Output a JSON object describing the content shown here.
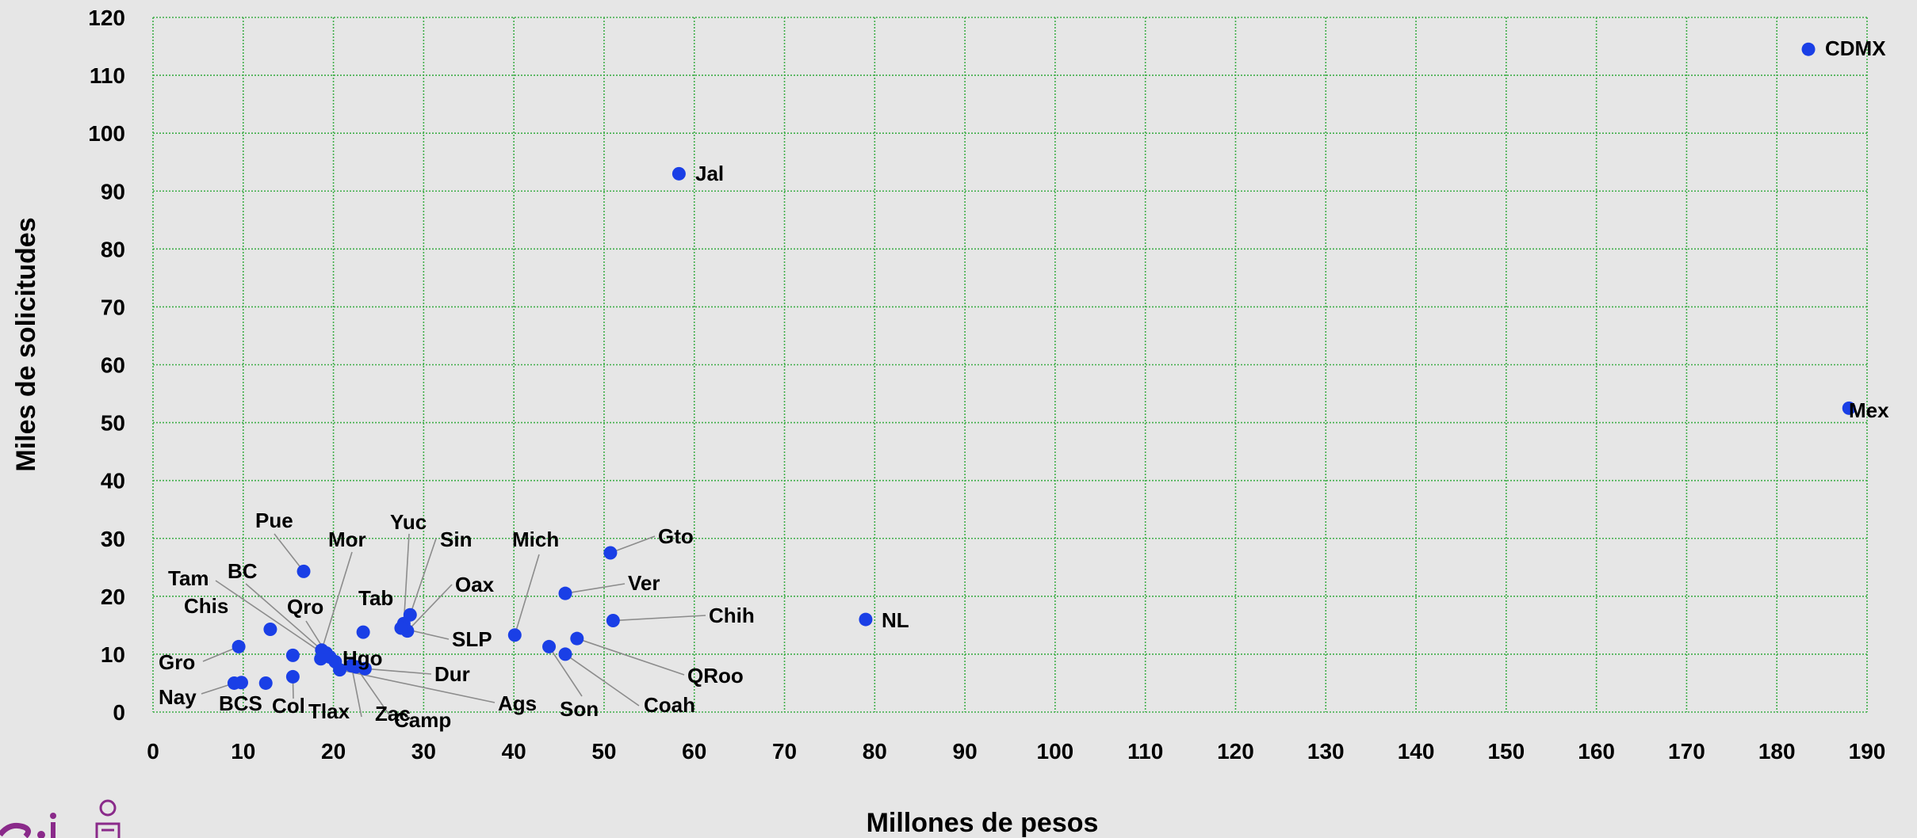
{
  "chart_data": {
    "type": "scatter",
    "xlabel": "Millones de pesos",
    "ylabel": "Miles de solicitudes",
    "xlim": [
      0,
      190
    ],
    "ylim": [
      0,
      120
    ],
    "xticks": [
      0,
      10,
      20,
      30,
      40,
      50,
      60,
      70,
      80,
      90,
      100,
      110,
      120,
      130,
      140,
      150,
      160,
      170,
      180,
      190
    ],
    "yticks": [
      0,
      10,
      20,
      30,
      40,
      50,
      60,
      70,
      80,
      90,
      100,
      110,
      120
    ],
    "grid": true,
    "marker_color": "#1a3fe6",
    "grid_color": "#3fae49",
    "points": [
      {
        "label": "CDMX",
        "x": 183.5,
        "y": 114.5
      },
      {
        "label": "Jal",
        "x": 58.3,
        "y": 93.0
      },
      {
        "label": "Mex",
        "x": 188.0,
        "y": 52.5
      },
      {
        "label": "NL",
        "x": 79.0,
        "y": 16.0
      },
      {
        "label": "Gto",
        "x": 50.7,
        "y": 27.5
      },
      {
        "label": "Ver",
        "x": 45.7,
        "y": 20.5
      },
      {
        "label": "Chih",
        "x": 51.0,
        "y": 15.8
      },
      {
        "label": "QRoo",
        "x": 47.0,
        "y": 12.7
      },
      {
        "label": "Coah",
        "x": 45.7,
        "y": 10.0
      },
      {
        "label": "Son",
        "x": 43.9,
        "y": 11.3
      },
      {
        "label": "Mich",
        "x": 40.1,
        "y": 13.3
      },
      {
        "label": "Yuc",
        "x": 27.8,
        "y": 15.3
      },
      {
        "label": "Sin",
        "x": 28.5,
        "y": 16.8
      },
      {
        "label": "Oax",
        "x": 28.2,
        "y": 14.0
      },
      {
        "label": "SLP",
        "x": 27.5,
        "y": 14.5
      },
      {
        "label": "Tab",
        "x": 23.3,
        "y": 13.8
      },
      {
        "label": "Pue",
        "x": 16.7,
        "y": 24.3
      },
      {
        "label": "Mor",
        "x": 18.7,
        "y": 10.7
      },
      {
        "label": "Qro",
        "x": 19.2,
        "y": 10.2
      },
      {
        "label": "BC",
        "x": 19.6,
        "y": 9.5
      },
      {
        "label": "Tam",
        "x": 20.2,
        "y": 8.7
      },
      {
        "label": "Hgo",
        "x": 18.6,
        "y": 9.2
      },
      {
        "label": "Dur",
        "x": 23.5,
        "y": 7.5
      },
      {
        "label": "Ags",
        "x": 20.7,
        "y": 7.3
      },
      {
        "label": "Camp",
        "x": 22.5,
        "y": 7.8
      },
      {
        "label": "Zac",
        "x": 22.0,
        "y": 8.0
      },
      {
        "label": "Tlax",
        "x": 15.5,
        "y": 9.8
      },
      {
        "label": "Chis",
        "x": 13.0,
        "y": 14.3
      },
      {
        "label": "Gro",
        "x": 9.5,
        "y": 11.3
      },
      {
        "label": "Col",
        "x": 15.5,
        "y": 6.1
      },
      {
        "label": "BCS",
        "x": 12.5,
        "y": 5.0
      },
      {
        "label": "Nay",
        "x": 9.0,
        "y": 5.0
      },
      {
        "label": "",
        "x": 9.8,
        "y": 5.1
      }
    ]
  }
}
